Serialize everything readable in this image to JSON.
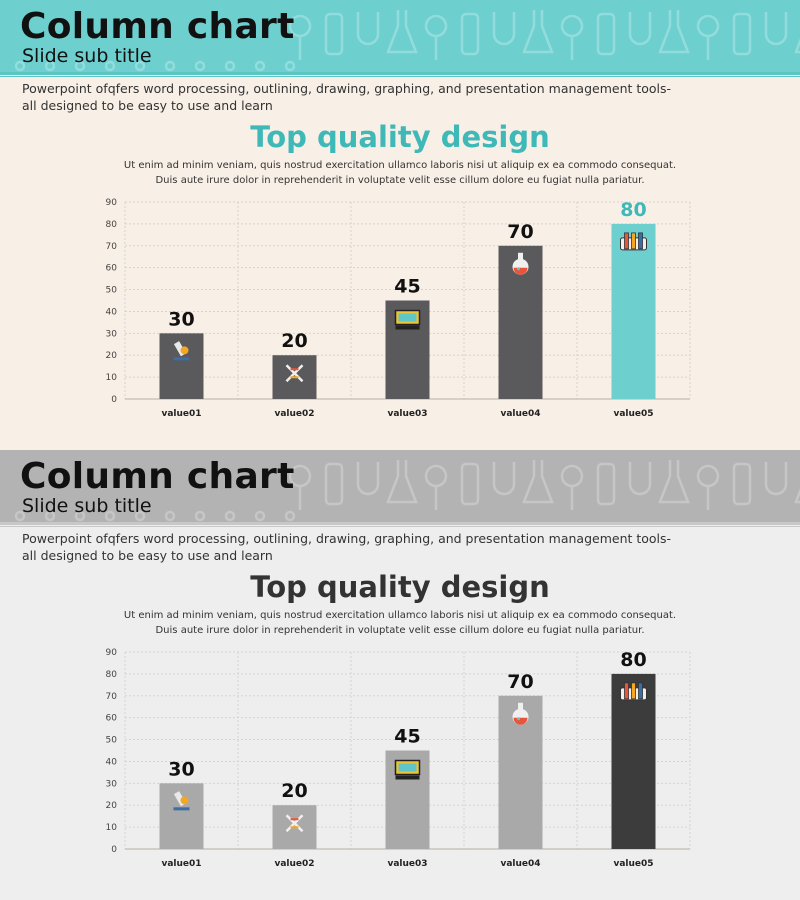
{
  "slides": [
    {
      "title": "Column chart",
      "subtitle": "Slide sub title",
      "intro_lines": [
        "Powerpoint ofqfers word processing, outlining, drawing, graphing, and presentation management tools-",
        "all designed to be easy to use and learn"
      ],
      "heading": "Top quality design",
      "desc_lines": [
        "Ut enim ad minim veniam, quis nostrud exercitation  ullamco laboris nisi ut aliquip ex ea commodo consequat.",
        "Duis aute irure dolor in reprehenderit  in voluptate  velit esse cillum dolore eu  fugiat nulla pariatur."
      ],
      "colors": {
        "background": "#f8efe6",
        "header_band": "#6ecfcf",
        "header_pattern": "#93dcdc",
        "header_rule": "#5cc4c4",
        "heading": "#3fb8b8",
        "bar": "#5a5a5c",
        "highlight_bar": "#6ecfcf",
        "data_label": "#111111",
        "highlight_label": "#3fb8b8"
      }
    },
    {
      "title": "Column chart",
      "subtitle": "Slide sub title",
      "intro_lines": [
        "Powerpoint ofqfers word processing, outlining, drawing, graphing, and presentation management tools-",
        "all designed to be easy to use and learn"
      ],
      "heading": "Top quality design",
      "desc_lines": [
        "Ut enim ad minim veniam, quis nostrud exercitation  ullamco laboris nisi ut aliquip ex ea commodo consequat.",
        "Duis aute irure dolor in reprehenderit  in voluptate  velit esse cillum dolore eu  fugiat nulla pariatur."
      ],
      "colors": {
        "background": "#eeeeee",
        "header_band": "#b3b3b3",
        "header_pattern": "#c6c6c6",
        "header_rule": "#c8c8c8",
        "heading": "#333333",
        "bar": "#a9a9a9",
        "highlight_bar": "#3c3c3c",
        "data_label": "#111111",
        "highlight_label": "#111111"
      }
    }
  ],
  "chart_data": [
    {
      "type": "bar",
      "title": "",
      "categories": [
        "value01",
        "value02",
        "value03",
        "value04",
        "value05"
      ],
      "values": [
        30,
        20,
        45,
        70,
        80
      ],
      "data_labels": [
        "30",
        "20",
        "45",
        "70",
        "80"
      ],
      "bar_icons": [
        "microscope-icon",
        "dna-icon",
        "monitor-icon",
        "flask-icon",
        "test-tubes-icon"
      ],
      "highlight_index": 4,
      "ylim": [
        0,
        90
      ],
      "yticks": [
        "0",
        "10",
        "20",
        "30",
        "40",
        "50",
        "60",
        "70",
        "80",
        "90"
      ],
      "grid": true,
      "legend": "none",
      "xlabel": "",
      "ylabel": ""
    },
    {
      "type": "bar",
      "title": "",
      "categories": [
        "value01",
        "value02",
        "value03",
        "value04",
        "value05"
      ],
      "values": [
        30,
        20,
        45,
        70,
        80
      ],
      "data_labels": [
        "30",
        "20",
        "45",
        "70",
        "80"
      ],
      "bar_icons": [
        "microscope-icon",
        "dna-icon",
        "monitor-icon",
        "flask-icon",
        "test-tubes-icon"
      ],
      "highlight_index": 4,
      "ylim": [
        0,
        90
      ],
      "yticks": [
        "0",
        "10",
        "20",
        "30",
        "40",
        "50",
        "60",
        "70",
        "80",
        "90"
      ],
      "grid": true,
      "legend": "none",
      "xlabel": "",
      "ylabel": ""
    }
  ]
}
